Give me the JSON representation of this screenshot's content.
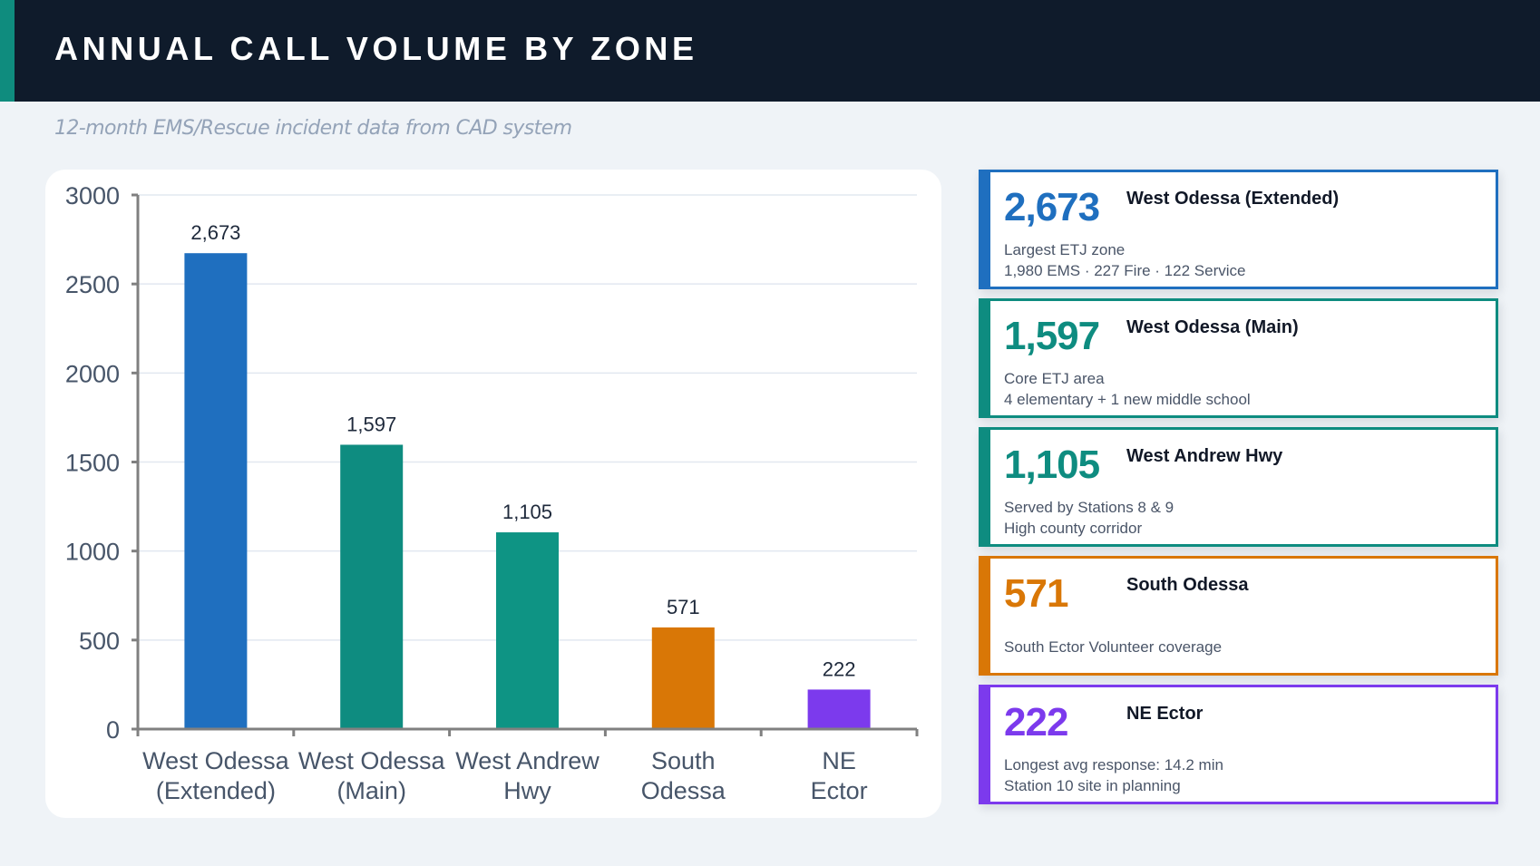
{
  "header": {
    "title": "ANNUAL CALL VOLUME BY ZONE",
    "subtitle": "12-month EMS/Rescue incident data from CAD system",
    "accent_color": "#0f8c7e",
    "background_color": "#0f1b2b"
  },
  "chart_data": {
    "type": "bar",
    "title": "",
    "xlabel": "",
    "ylabel": "",
    "categories": [
      [
        "West Odessa",
        "(Extended)"
      ],
      [
        "West Odessa",
        "(Main)"
      ],
      [
        "West Andrew",
        "Hwy"
      ],
      [
        "South",
        "Odessa"
      ],
      [
        "NE",
        "Ector"
      ]
    ],
    "values": [
      2673,
      1597,
      1105,
      571,
      222
    ],
    "data_labels": [
      "2,673",
      "1,597",
      "1,105",
      "571",
      "222"
    ],
    "colors": [
      "#1f6fbf",
      "#0e8c80",
      "#0e9484",
      "#d97706",
      "#7c3aed"
    ],
    "ylim": [
      0,
      3000
    ],
    "yticks": [
      0,
      500,
      1000,
      1500,
      2000,
      2500,
      3000
    ],
    "grid": true,
    "legend": "none"
  },
  "cards": [
    {
      "number": "2,673",
      "name": "West Odessa (Extended)",
      "details": [
        "Largest ETJ zone",
        "1,980 EMS · 227 Fire · 122 Service"
      ],
      "color": "#1f6fbf"
    },
    {
      "number": "1,597",
      "name": "West Odessa (Main)",
      "details": [
        "Core ETJ area",
        "4 elementary + 1 new middle school"
      ],
      "color": "#0e8c80"
    },
    {
      "number": "1,105",
      "name": "West Andrew Hwy",
      "details": [
        "Served by Stations 8 & 9",
        "High county corridor"
      ],
      "color": "#0e8c80"
    },
    {
      "number": "571",
      "name": "South Odessa",
      "details": [
        "South Ector Volunteer coverage"
      ],
      "color": "#d97706"
    },
    {
      "number": "222",
      "name": "NE Ector",
      "details": [
        "Longest avg response: 14.2 min",
        "Station 10 site in planning"
      ],
      "color": "#7c3aed"
    }
  ]
}
